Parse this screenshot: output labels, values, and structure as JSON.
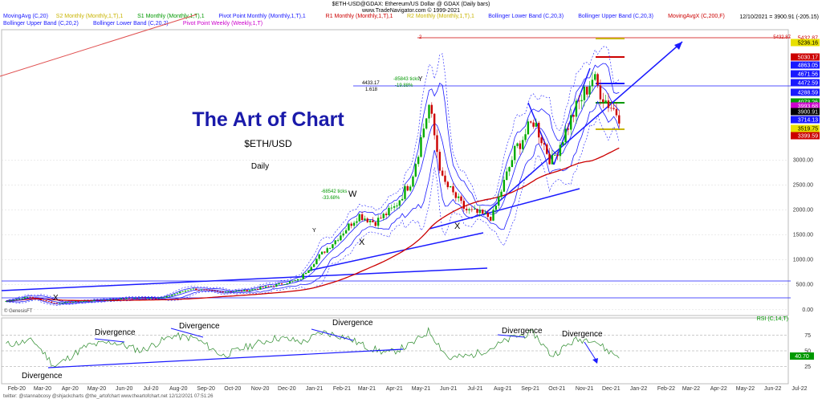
{
  "header": {
    "title": "$ETH-USD@GDAX:  Ethereum/US Dollar @ GDAX  (Daily bars)",
    "source": "www.TradeNavigator.com © 1999-2021",
    "quote": "12/10/2021 = 3900.91 (-205.15)",
    "legend_row1": [
      {
        "text": "MovingAvg (C,20)",
        "color": "#1a1aff"
      },
      {
        "text": "S2 Monthly (Monthly,1,T),1",
        "color": "#c8b400"
      },
      {
        "text": "S1 Monthly (Monthly,1,T),1",
        "color": "#009900"
      },
      {
        "text": "Pivot Point Monthly (Monthly,1,T),1",
        "color": "#1a1aff"
      },
      {
        "text": "R1 Monthly (Monthly,1,T),1",
        "color": "#cc0000"
      },
      {
        "text": "R2 Monthly (Monthly,1,T),1",
        "color": "#c8b400"
      },
      {
        "text": "Bollinger Lower Band (C,20,3)",
        "color": "#1a1aff"
      },
      {
        "text": "Bollinger Upper Band (C,20,3)",
        "color": "#1a1aff"
      },
      {
        "text": "MovingAvgX (C,200,F)",
        "color": "#cc0000"
      }
    ],
    "legend_row2": [
      {
        "text": "Bollinger Upper Band (C,20,2)",
        "color": "#1a1aff"
      },
      {
        "text": "Bollinger Lower Band (C,20,2)",
        "color": "#1a1aff"
      },
      {
        "text": "Pivot Point Weekly (Weekly,1,T)",
        "color": "#cc00cc"
      }
    ]
  },
  "watermark": {
    "title": "The Art of Chart",
    "symbol": "$ETH/USD",
    "period": "Daily"
  },
  "annotations": {
    "w": "W",
    "x1": "X",
    "x2": "X",
    "x3": "X",
    "y1": "Y",
    "y2": "Y",
    "fib_top": "2",
    "fib_price": "5432.87",
    "level_4433": "4433.17",
    "level_1618": "1.618",
    "ticks_top": "-85843 ticks",
    "pct_top": "-19.88%",
    "ticks_mid": "-68542 ticks",
    "pct_mid": "-33.68%",
    "genesis": "© GenesisFT",
    "footer": "twitter: @stannabcosy @shjackcharts @the_artofchart   www.theartofchart.net   12/12/2021 07:51:26"
  },
  "divergence_labels": [
    "Divergence",
    "Divergence",
    "Divergence",
    "Divergence",
    "Divergence",
    "Divergence"
  ],
  "price_tags": [
    {
      "text": "5432.87",
      "bg": "#ffffff",
      "fg": "#cc0000"
    },
    {
      "text": "5236.16",
      "bg": "#e8e000",
      "fg": "#000000"
    },
    {
      "text": "5030.17",
      "bg": "#cc0000",
      "fg": "#ffffff"
    },
    {
      "text": "4863.05",
      "bg": "#1a1aff",
      "fg": "#ffffff"
    },
    {
      "text": "4671.56",
      "bg": "#1a1aff",
      "fg": "#ffffff"
    },
    {
      "text": "4472.59",
      "bg": "#1a1aff",
      "fg": "#ffffff"
    },
    {
      "text": "4288.59",
      "bg": "#1a1aff",
      "fg": "#ffffff"
    },
    {
      "text": "4073.26",
      "bg": "#009900",
      "fg": "#ffffff"
    },
    {
      "text": "3993.68",
      "bg": "#cc00cc",
      "fg": "#ffffff"
    },
    {
      "text": "3900.91",
      "bg": "#000000",
      "fg": "#ffffff"
    },
    {
      "text": "3714.13",
      "bg": "#1a1aff",
      "fg": "#ffffff"
    },
    {
      "text": "3519.75",
      "bg": "#e8e000",
      "fg": "#000000"
    },
    {
      "text": "3399.59",
      "bg": "#cc0000",
      "fg": "#ffffff"
    }
  ],
  "rsi": {
    "label": "RSI (C,14,T)",
    "value": "40.70",
    "levels": [
      "75",
      "50",
      "25"
    ]
  },
  "colors": {
    "up": "#00aa00",
    "down": "#cc0000",
    "ma20": "#1a1aff",
    "ma200": "#cc0000",
    "band": "#1a1aff",
    "rsi": "#2a8a2a",
    "title": "#1a1aaa",
    "r2": "#c8b400",
    "pivot": "#1a1aff"
  },
  "chart_data": {
    "type": "line",
    "title": "The Art of Chart",
    "symbol": "$ETH/USD",
    "x_ticks": [
      "Feb-20",
      "Mar-20",
      "Apr-20",
      "May-20",
      "Jun-20",
      "Jul-20",
      "Aug-20",
      "Sep-20",
      "Oct-20",
      "Nov-20",
      "Dec-20",
      "Jan-21",
      "Feb-21",
      "Mar-21",
      "Apr-21",
      "May-21",
      "Jun-21",
      "Jul-21",
      "Aug-21",
      "Sep-21",
      "Oct-21",
      "Nov-21",
      "Dec-21",
      "Jan-22",
      "Feb-22",
      "Mar-22",
      "Apr-22",
      "May-22",
      "Jun-22",
      "Jul-22"
    ],
    "y_ticks": [
      0,
      500,
      1000,
      1500,
      2000,
      2500,
      3000
    ],
    "ylim": [
      -100,
      5600
    ],
    "x_date_range": [
      "2020-01-15",
      "2022-07-20"
    ],
    "series": [
      {
        "name": "",
        "x": [
          "2020-01-20",
          "2020-02-15",
          "2020-03-15",
          "2020-04-15",
          "2020-05-15",
          "2020-06-15",
          "2020-07-15",
          "2020-08-15",
          "2020-09-15",
          "2020-10-15",
          "2020-11-15",
          "2020-12-15",
          "2021-01-05",
          "2021-01-25",
          "2021-02-20",
          "2021-03-10",
          "2021-04-01",
          "2021-04-20",
          "2021-05-10",
          "2021-05-25",
          "2021-06-20",
          "2021-07-20",
          "2021-08-15",
          "2021-09-05",
          "2021-09-25",
          "2021-10-20",
          "2021-11-10",
          "2021-11-25",
          "2021-12-10"
        ],
        "values": [
          170,
          260,
          130,
          170,
          205,
          235,
          240,
          420,
          360,
          380,
          480,
          600,
          1050,
          1400,
          1900,
          1750,
          2050,
          2600,
          4100,
          2600,
          2000,
          1850,
          3200,
          3800,
          2950,
          3950,
          4650,
          4200,
          3900
        ]
      }
    ],
    "rsi": {
      "name": "RSI (C,14,T)",
      "ylim": [
        0,
        100
      ],
      "x": [
        "2020-01-20",
        "2020-02-20",
        "2020-03-15",
        "2020-04-20",
        "2020-05-20",
        "2020-06-20",
        "2020-07-25",
        "2020-08-20",
        "2020-09-20",
        "2020-10-20",
        "2020-11-20",
        "2020-12-20",
        "2021-01-10",
        "2021-02-05",
        "2021-03-01",
        "2021-03-25",
        "2021-04-20",
        "2021-05-10",
        "2021-06-01",
        "2021-06-25",
        "2021-07-20",
        "2021-08-15",
        "2021-09-05",
        "2021-09-25",
        "2021-10-20",
        "2021-11-10",
        "2021-11-25",
        "2021-12-10"
      ],
      "values": [
        60,
        66,
        25,
        58,
        64,
        50,
        74,
        70,
        42,
        58,
        71,
        64,
        80,
        72,
        56,
        46,
        60,
        82,
        38,
        42,
        55,
        73,
        78,
        42,
        66,
        70,
        52,
        40.7
      ]
    }
  }
}
